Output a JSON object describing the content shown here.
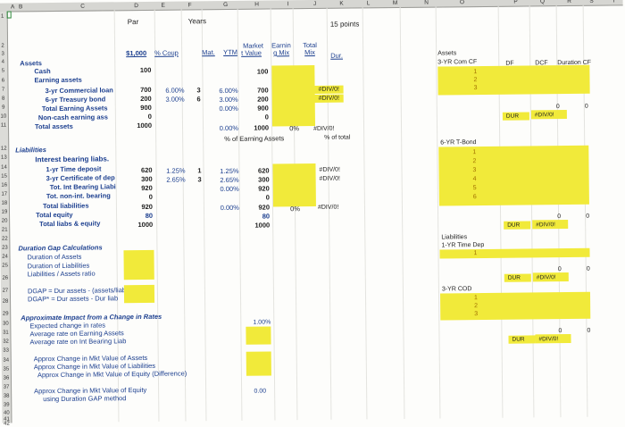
{
  "columns": [
    "A",
    "B",
    "C",
    "D",
    "E",
    "F",
    "G",
    "H",
    "I",
    "J",
    "K",
    "L",
    "M",
    "N",
    "O",
    "P",
    "Q",
    "R",
    "S",
    "T"
  ],
  "rows": [
    "1",
    "2",
    "3",
    "4",
    "5",
    "6",
    "7",
    "8",
    "9",
    "10",
    "11",
    "12",
    "13",
    "14",
    "15",
    "16",
    "17",
    "18",
    "19",
    "20",
    "21",
    "22",
    "23",
    "24",
    "25",
    "26",
    "27",
    "28",
    "29",
    "30",
    "31",
    "32",
    "33",
    "34",
    "35",
    "36",
    "37",
    "38",
    "39",
    "40",
    "41",
    "42"
  ],
  "header": {
    "par": "Par",
    "years": "Years",
    "points": "15 points",
    "amount": "$1,000",
    "coup": "% Coup",
    "mat": "Mat.",
    "ytm": "YTM",
    "market": "Market",
    "tvalue": "t Value",
    "earning": "Earnin",
    "gmix": "g Mix",
    "total": "Total",
    "mix": "Mix",
    "dur": "Dur."
  },
  "assets": {
    "title": "Assets",
    "rows": [
      {
        "label": "Cash",
        "par": "100",
        "coup": "",
        "mat": "",
        "ytm": "",
        "mv": "100",
        "dur": ""
      },
      {
        "label": "Earning assets",
        "par": "",
        "coup": "",
        "mat": "",
        "ytm": "",
        "mv": "",
        "dur": ""
      },
      {
        "label": "3-yr Commercial loan",
        "par": "700",
        "coup": "6.00%",
        "mat": "3",
        "ytm": "6.00%",
        "mv": "700",
        "dur": "#DIV/0!"
      },
      {
        "label": "6-yr Treasury bond",
        "par": "200",
        "coup": "3.00%",
        "mat": "6",
        "ytm": "3.00%",
        "mv": "200",
        "dur": "#DIV/0!"
      },
      {
        "label": "Total Earning Assets",
        "par": "900",
        "coup": "",
        "mat": "",
        "ytm": "0.00%",
        "mv": "900",
        "dur": ""
      },
      {
        "label": "Non-cash earning ass",
        "par": "0",
        "coup": "",
        "mat": "",
        "ytm": "",
        "mv": "0",
        "dur": ""
      },
      {
        "label": "Total assets",
        "par": "1000",
        "coup": "",
        "mat": "",
        "ytm": "0.00%",
        "mv": "1000",
        "dur": "#DIV/0!"
      }
    ],
    "earning_pct": "0%",
    "of_earning": "% of Earning Assets",
    "of_total": "% of total"
  },
  "liabilities": {
    "title": "Liabilities",
    "rows": [
      {
        "label": "Interest bearing liabs.",
        "par": "",
        "coup": "",
        "mat": "",
        "ytm": "",
        "mv": "",
        "dur": ""
      },
      {
        "label": "1-yr Time deposit",
        "par": "620",
        "coup": "1.25%",
        "mat": "1",
        "ytm": "1.25%",
        "mv": "620",
        "dur": "#DIV/0!"
      },
      {
        "label": "3-yr Certificate of dep",
        "par": "300",
        "coup": "2.65%",
        "mat": "3",
        "ytm": "2.65%",
        "mv": "300",
        "dur": "#DIV/0!"
      },
      {
        "label": "Tot. Int Bearing Liabi",
        "par": "920",
        "coup": "",
        "mat": "",
        "ytm": "0.00%",
        "mv": "920",
        "dur": ""
      },
      {
        "label": "Tot. non-int. bearing",
        "par": "0",
        "coup": "",
        "mat": "",
        "ytm": "",
        "mv": "0",
        "dur": ""
      },
      {
        "label": "Total liabilities",
        "par": "920",
        "coup": "",
        "mat": "",
        "ytm": "0.00%",
        "mv": "920",
        "dur": "#DIV/0!"
      },
      {
        "label": "Total equity",
        "par": "80",
        "coup": "",
        "mat": "",
        "ytm": "",
        "mv": "80",
        "dur": ""
      },
      {
        "label": "Total liabs & equity",
        "par": "1000",
        "coup": "",
        "mat": "",
        "ytm": "",
        "mv": "1000",
        "dur": ""
      }
    ],
    "liab_pct": "0%"
  },
  "duration_gap": {
    "title": "Duration Gap Calculations",
    "items": [
      "Duration of Assets",
      "Duration of Liabilities",
      "Liabilities / Assets ratio"
    ],
    "formula1": "DGAP = Dur assets - (assets/liab)*Dur liab",
    "formula2": "DGAP* = Dur assets - Dur liab"
  },
  "impact": {
    "title": "Approximate Impact from a Change in Rates",
    "items": [
      "Expected change in rates",
      "Average rate on Earning Assets",
      "Average rate on Int Bearing Liab"
    ],
    "change_value": "1.00%",
    "mkt": [
      "Approx Change in Mkt Value of Assets",
      "Approx Change in Mkt Value of Liabilities",
      "Approx Change in Mkt Value of Equity (Difference)"
    ],
    "equity1": "Approx Change in Mkt Value of Equity",
    "equity2": "using Duration GAP method",
    "equity_value": "0.00"
  },
  "right_panel": {
    "assets_label": "Assets",
    "comcf": "3-YR Com CF",
    "df": "DF",
    "dcf": "DCF",
    "durcf": "Duration CF",
    "com_years": [
      "1",
      "2",
      "3"
    ],
    "com_dur": "DUR",
    "com_div": "#DIV/0!",
    "com_zero1": "0",
    "com_zero2": "0",
    "tbond": "6-YR T-Bond",
    "tbond_years": [
      "1",
      "2",
      "3",
      "4",
      "5",
      "6"
    ],
    "tb_dur": "DUR",
    "tb_div": "#DIV/0!",
    "tb_zero1": "0",
    "tb_zero2": "0",
    "liab_label": "Liabilities",
    "timedep": "1-YR Time Dep",
    "td_years": [
      "1"
    ],
    "td_dur": "DUR",
    "td_div": "#DIV/0!",
    "td_zero1": "0",
    "td_zero2": "0",
    "cod": "3-YR COD",
    "cod_years": [
      "1",
      "2",
      "3"
    ],
    "cod_dur": "DUR",
    "cod_div": "#DIV/0!",
    "cod_zero1": "0",
    "cod_zero2": "0"
  }
}
